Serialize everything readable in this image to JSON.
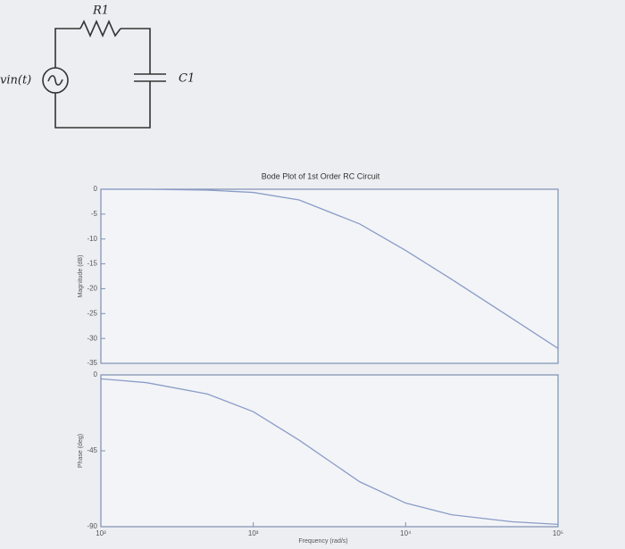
{
  "circuit": {
    "source_label": "vin(t)",
    "resistor_label": "R1",
    "capacitor_label": "C1"
  },
  "chart_data": [
    {
      "type": "line",
      "title": "Bode Plot of 1st Order RC Circuit",
      "ylabel": "Magnitude (dB)",
      "xscale": "log",
      "xlim": [
        100,
        100000
      ],
      "x": [
        100,
        200,
        500,
        1000,
        2000,
        5000,
        10000,
        20000,
        50000,
        100000
      ],
      "values": [
        0,
        0,
        -0.17,
        -0.64,
        -2.15,
        -6.99,
        -12.3,
        -18.1,
        -26.0,
        -32.0
      ],
      "color": "#8a9cc8",
      "ylim": [
        -35,
        0
      ],
      "yticks": [
        0,
        -5,
        -10,
        -15,
        -20,
        -25,
        -30,
        -35
      ]
    },
    {
      "type": "line",
      "ylabel": "Phase (deg)",
      "xlabel": "Frequency (rad/s)",
      "xscale": "log",
      "xlim": [
        100,
        100000
      ],
      "xticks": [
        {
          "value": 100,
          "label": "10²"
        },
        {
          "value": 1000,
          "label": "10³"
        },
        {
          "value": 10000,
          "label": "10⁴"
        },
        {
          "value": 100000,
          "label": "10⁵"
        }
      ],
      "x": [
        100,
        200,
        500,
        1000,
        2000,
        5000,
        10000,
        20000,
        50000,
        100000
      ],
      "values": [
        -2.3,
        -4.6,
        -11.3,
        -21.8,
        -38.7,
        -63.4,
        -76.0,
        -82.9,
        -87.1,
        -88.6
      ],
      "color": "#8a9cc8",
      "ylim": [
        -90,
        0
      ],
      "yticks": [
        0,
        -45,
        -90
      ]
    }
  ]
}
